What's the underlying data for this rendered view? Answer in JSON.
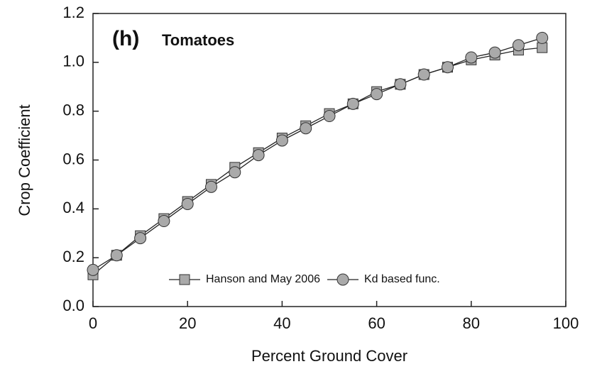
{
  "chart_data": {
    "type": "line",
    "panel_label": "(h)",
    "title": "Tomatoes",
    "xlabel": "Percent Ground Cover",
    "ylabel": "Crop Coefficient",
    "x": [
      0,
      5,
      10,
      15,
      20,
      25,
      30,
      35,
      40,
      45,
      50,
      55,
      60,
      65,
      70,
      75,
      80,
      85,
      90,
      95
    ],
    "series": [
      {
        "name": "Hanson and May 2006",
        "marker": "square",
        "color": "#aaaaaa",
        "values": [
          0.13,
          0.21,
          0.29,
          0.36,
          0.43,
          0.5,
          0.57,
          0.63,
          0.69,
          0.74,
          0.79,
          0.83,
          0.88,
          0.91,
          0.95,
          0.98,
          1.01,
          1.03,
          1.05,
          1.06
        ]
      },
      {
        "name": "Kd based func.",
        "marker": "circle",
        "color": "#aaaaaa",
        "values": [
          0.15,
          0.21,
          0.28,
          0.35,
          0.42,
          0.49,
          0.55,
          0.62,
          0.68,
          0.73,
          0.78,
          0.83,
          0.87,
          0.91,
          0.95,
          0.98,
          1.02,
          1.04,
          1.07,
          1.1
        ]
      }
    ],
    "xlim": [
      0,
      100
    ],
    "xticks": [
      0,
      20,
      40,
      60,
      80,
      100
    ],
    "ylim": [
      0,
      1.2
    ],
    "yticks": [
      {
        "value": 0,
        "label": "0.0"
      },
      0.2,
      0.4,
      0.6,
      0.8,
      {
        "value": 1,
        "label": "1.0"
      },
      1.2
    ],
    "legend": "lower right"
  }
}
